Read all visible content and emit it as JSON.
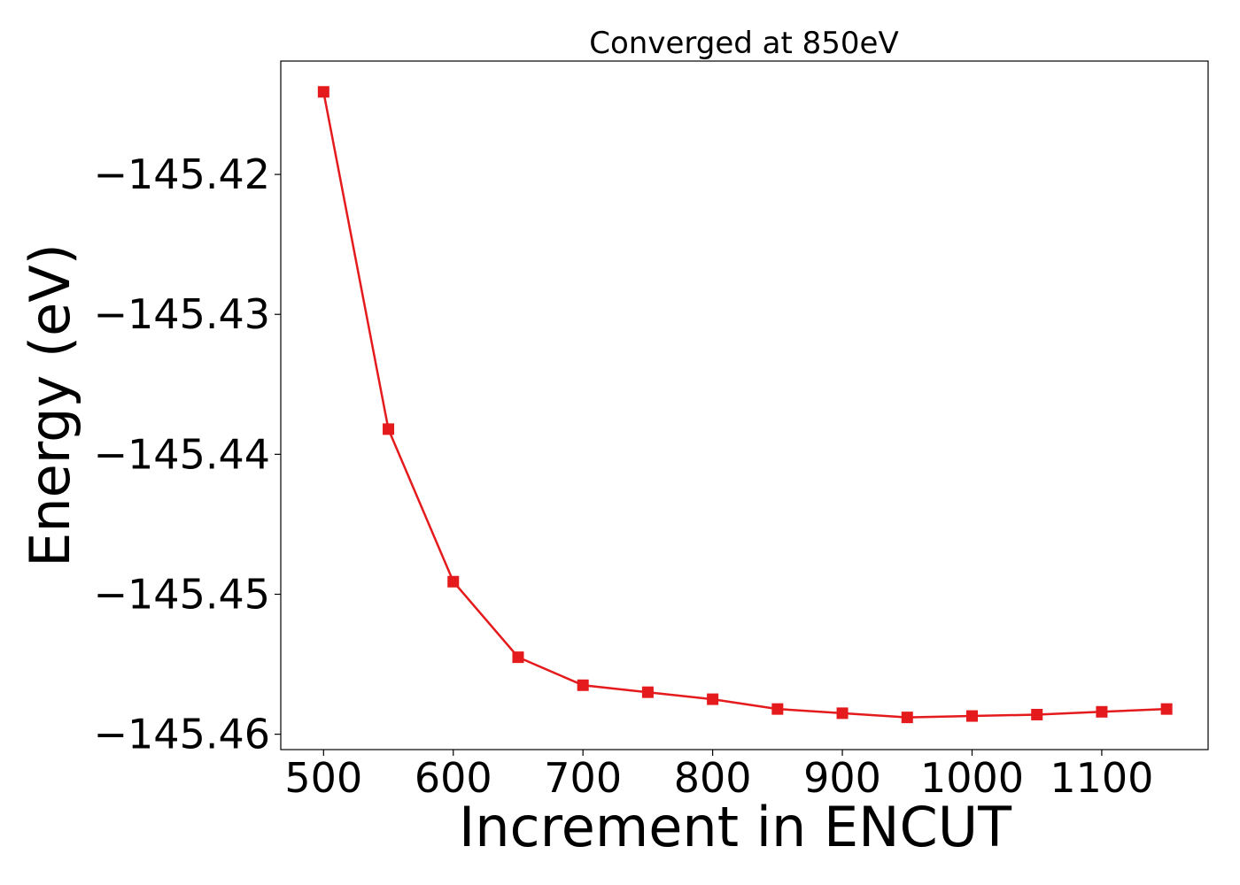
{
  "chart_data": {
    "type": "line",
    "title": "Converged at 850eV",
    "xlabel": "Increment in ENCUT",
    "ylabel": "Energy (eV)",
    "x": [
      500,
      550,
      600,
      650,
      700,
      750,
      800,
      850,
      900,
      950,
      1000,
      1050,
      1100,
      1150
    ],
    "y": [
      -145.4141,
      -145.4382,
      -145.4491,
      -145.4545,
      -145.4565,
      -145.457,
      -145.4575,
      -145.4582,
      -145.4585,
      -145.4588,
      -145.4587,
      -145.4586,
      -145.4584,
      -145.4582
    ],
    "xlim": [
      467,
      1182
    ],
    "ylim": [
      -145.4611,
      -145.4119
    ],
    "xticks": [
      500,
      600,
      700,
      800,
      900,
      1000,
      1100
    ],
    "xtick_labels": [
      "500",
      "600",
      "700",
      "800",
      "900",
      "1000",
      "1100"
    ],
    "yticks": [
      -145.42,
      -145.43,
      -145.44,
      -145.45,
      -145.46
    ],
    "ytick_labels": [
      "−145.42",
      "−145.43",
      "−145.44",
      "−145.45",
      "−145.46"
    ],
    "series_color": "#e41a1c",
    "marker": "square",
    "grid": false,
    "legend": "none"
  }
}
